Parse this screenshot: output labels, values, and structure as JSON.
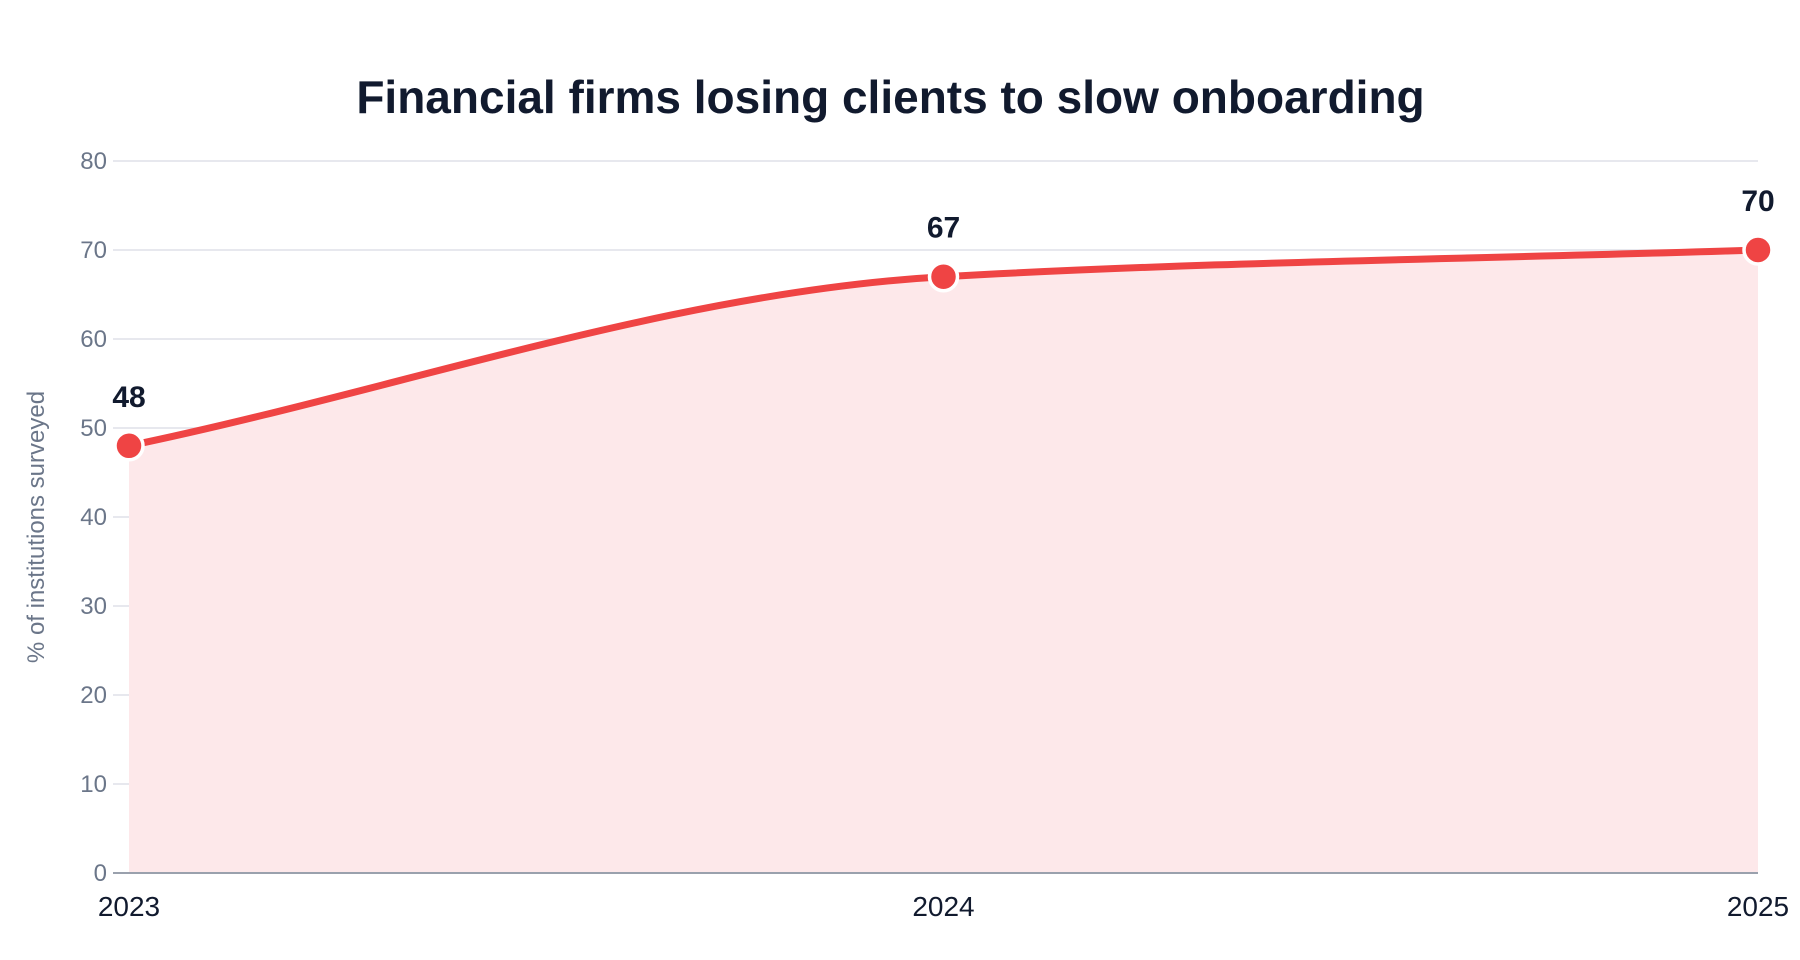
{
  "chart_data": {
    "type": "area",
    "title": "Financial firms losing clients to slow onboarding",
    "xlabel": "",
    "ylabel": "% of institutions surveyed",
    "categories": [
      "2023",
      "2024",
      "2025"
    ],
    "series": [
      {
        "values": [
          48,
          67,
          70
        ]
      }
    ],
    "data_labels": [
      "48",
      "67",
      "70"
    ],
    "ylim": [
      0,
      80
    ],
    "yticks": [
      "0",
      "10",
      "20",
      "30",
      "40",
      "50",
      "60",
      "70",
      "80"
    ],
    "grid": true,
    "legend": "none",
    "colors": {
      "line": "#ef4444",
      "fill": "#fde8ea",
      "grid": "#dfe1e8",
      "axis": "#9aa1ad"
    }
  }
}
